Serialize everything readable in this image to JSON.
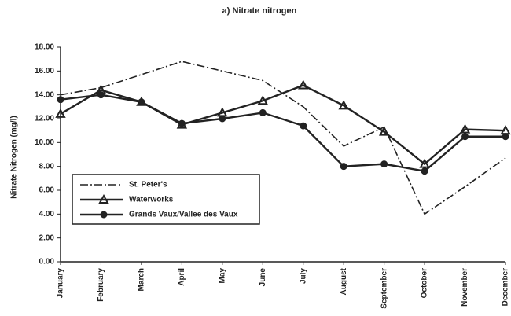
{
  "chart_data": {
    "type": "line",
    "title": "a)   Nitrate nitrogen",
    "y_label": "Nitrate Nitrogen (mg/l)",
    "categories": [
      "January",
      "February",
      "March",
      "April",
      "May",
      "June",
      "July",
      "August",
      "September",
      "October",
      "November",
      "December"
    ],
    "series": [
      {
        "name": "St. Peter's",
        "color": "#222222",
        "dash": "dash-dot",
        "marker": "none",
        "values": [
          14.0,
          14.6,
          15.7,
          16.8,
          16.0,
          15.2,
          13.0,
          9.7,
          11.3,
          4.0,
          6.3,
          8.7
        ]
      },
      {
        "name": "Waterworks",
        "color": "#222222",
        "dash": "solid",
        "marker": "triangle",
        "values": [
          12.4,
          14.4,
          13.4,
          11.5,
          12.5,
          13.5,
          14.8,
          13.1,
          10.9,
          8.2,
          11.1,
          11.0
        ]
      },
      {
        "name": "Grands Vaux/Vallee des Vaux",
        "color": "#222222",
        "dash": "solid",
        "marker": "circle",
        "values": [
          13.6,
          14.0,
          13.4,
          11.6,
          12.0,
          12.5,
          11.4,
          8.0,
          8.2,
          7.6,
          10.5,
          10.5
        ]
      }
    ],
    "ylim": [
      0,
      18
    ],
    "yticks": [
      {
        "value": 0,
        "label": "0.00"
      },
      {
        "value": 2,
        "label": "2.00"
      },
      {
        "value": 4,
        "label": "4.00"
      },
      {
        "value": 6,
        "label": "6.00"
      },
      {
        "value": 8,
        "label": "8.00"
      },
      {
        "value": 10,
        "label": "10.00"
      },
      {
        "value": 12,
        "label": "12.00"
      },
      {
        "value": 14,
        "label": "14.00"
      },
      {
        "value": 16,
        "label": "16.00"
      },
      {
        "value": 18,
        "label": "18.00"
      }
    ],
    "grid": false,
    "legend": "lower left"
  }
}
